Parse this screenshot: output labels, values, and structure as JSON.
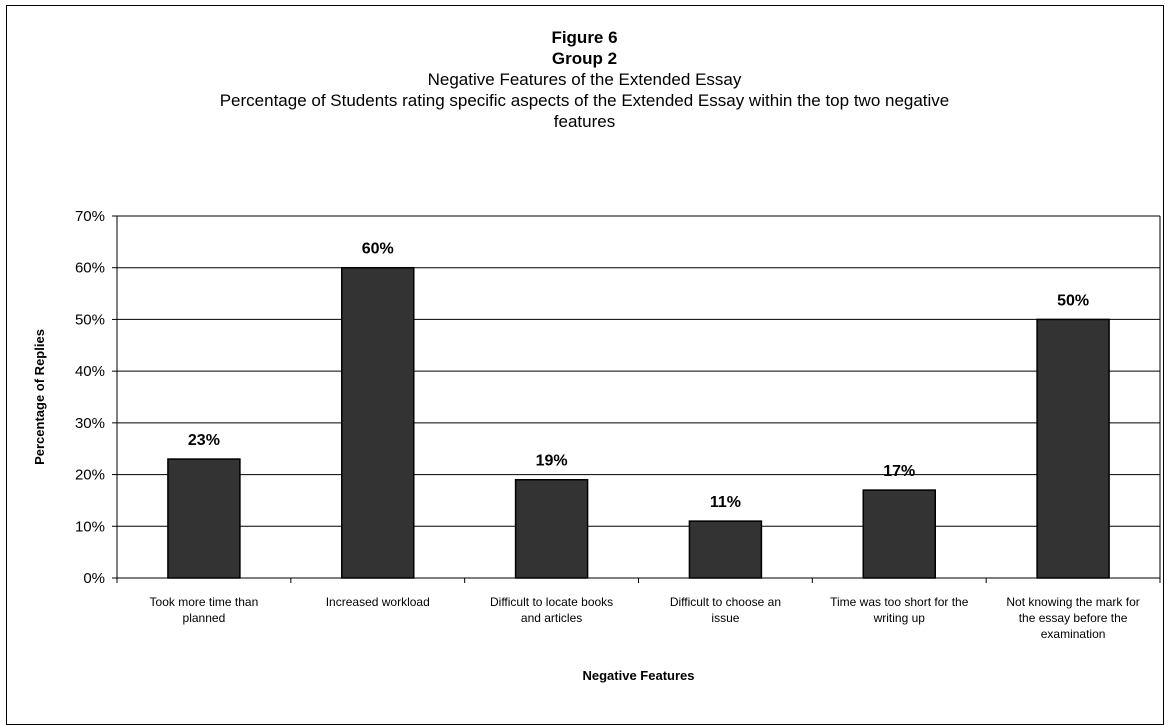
{
  "chart_data": {
    "type": "bar",
    "title": "Figure 6",
    "subtitle_group": "Group 2",
    "subtitle": "Negative Features of the Extended Essay",
    "description": "Percentage of Students rating specific aspects of the Extended Essay within the top two negative features",
    "xlabel": "Negative Features",
    "ylabel": "Percentage of Replies",
    "categories": [
      [
        "Took more time than",
        "planned"
      ],
      [
        "Increased workload"
      ],
      [
        "Difficult to locate books",
        "and articles"
      ],
      [
        "Difficult to choose an",
        "issue"
      ],
      [
        "Time was too short for the",
        "writing up"
      ],
      [
        "Not knowing the mark for",
        "the essay before the",
        "examination"
      ]
    ],
    "values": [
      23,
      60,
      19,
      11,
      17,
      50
    ],
    "data_labels": [
      "23%",
      "60%",
      "19%",
      "11%",
      "17%",
      "50%"
    ],
    "ylim": [
      0,
      70
    ],
    "yticks": [
      "0%",
      "10%",
      "20%",
      "30%",
      "40%",
      "50%",
      "60%",
      "70%"
    ],
    "grid": true,
    "bar_color": "#333333",
    "legend": "none"
  }
}
